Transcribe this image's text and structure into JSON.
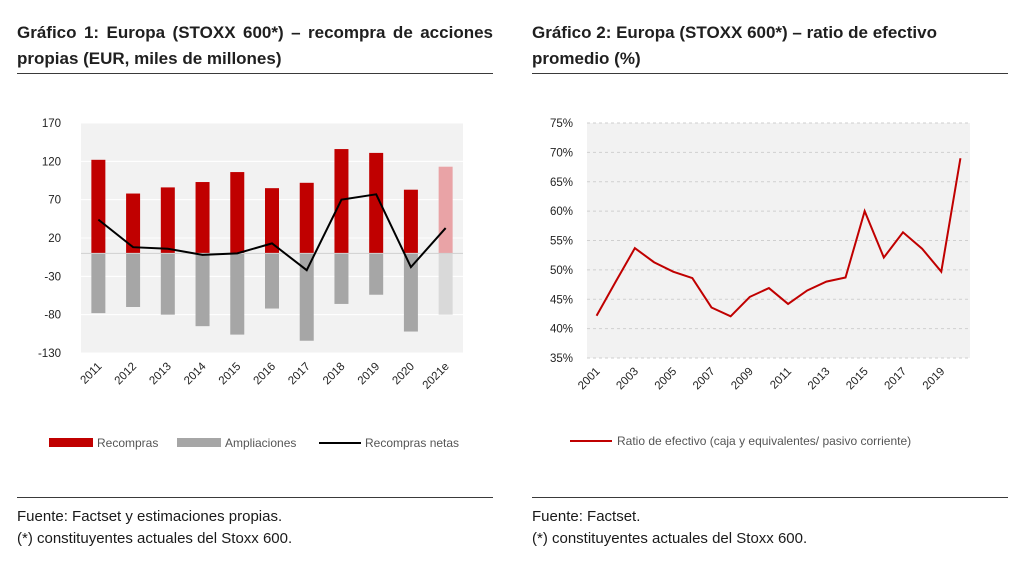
{
  "panel1": {
    "title": "Gráfico 1: Europa (STOXX 600*) – recompra de acciones propias (EUR, miles de millones)",
    "source_line1": "Fuente: Factset y estimaciones propias.",
    "source_line2": "(*) constituyentes actuales del Stoxx 600."
  },
  "panel2": {
    "title": "Gráfico 2: Europa (STOXX 600*) – ratio de efectivo promedio (%)",
    "source_line1": "Fuente: Factset.",
    "source_line2": "(*) constituyentes actuales del Stoxx 600."
  },
  "chart_data": [
    {
      "type": "bar",
      "categories": [
        "2011",
        "2012",
        "2013",
        "2014",
        "2015",
        "2016",
        "2017",
        "2018",
        "2019",
        "2020",
        "2021e"
      ],
      "series": [
        {
          "name": "Recompras",
          "kind": "bar",
          "color": "#c00000",
          "estimate_color": "#e9a3a6",
          "values": [
            122,
            78,
            86,
            93,
            106,
            85,
            92,
            136,
            131,
            83,
            113
          ]
        },
        {
          "name": "Ampliaciones",
          "kind": "bar",
          "color": "#a6a6a6",
          "estimate_color": "#d9d9d9",
          "values": [
            -78,
            -70,
            -80,
            -95,
            -106,
            -72,
            -114,
            -66,
            -54,
            -102,
            -80
          ]
        },
        {
          "name": "Recompras netas",
          "kind": "line",
          "color": "#000000",
          "values": [
            44,
            8,
            6,
            -2,
            0,
            13,
            -22,
            70,
            77,
            -18,
            33
          ]
        }
      ],
      "ylim": [
        -130,
        170
      ],
      "yticks": [
        "170",
        "120",
        "70",
        "20",
        "-30",
        "-80",
        "-130"
      ],
      "ytick_values": [
        170,
        120,
        70,
        20,
        -30,
        -80,
        -130
      ],
      "grid": true,
      "plot_background": "#f2f2f2",
      "legend_position": "bottom"
    },
    {
      "type": "line",
      "x": [
        "2001",
        "2002",
        "2003",
        "2004",
        "2005",
        "2006",
        "2007",
        "2008",
        "2009",
        "2010",
        "2011",
        "2012",
        "2013",
        "2014",
        "2015",
        "2016",
        "2017",
        "2018",
        "2019",
        "2020"
      ],
      "xticks": [
        "2001",
        "2003",
        "2005",
        "2007",
        "2009",
        "2011",
        "2013",
        "2015",
        "2017",
        "2019"
      ],
      "series": [
        {
          "name": "Ratio de efectivo (caja y equivalentes/ pasivo corriente)",
          "color": "#c00000",
          "values": [
            42.2,
            48.0,
            53.7,
            51.3,
            49.7,
            48.6,
            43.6,
            42.1,
            45.4,
            46.9,
            44.2,
            46.5,
            48.0,
            48.7,
            60.0,
            52.1,
            56.4,
            53.6,
            49.7,
            69.0
          ]
        }
      ],
      "ylim": [
        35,
        75
      ],
      "yticks": [
        "75%",
        "70%",
        "65%",
        "60%",
        "55%",
        "50%",
        "45%",
        "40%",
        "35%"
      ],
      "ytick_values": [
        75,
        70,
        65,
        60,
        55,
        50,
        45,
        40,
        35
      ],
      "grid": true,
      "plot_background": "#f2f2f2",
      "legend_position": "bottom"
    }
  ]
}
